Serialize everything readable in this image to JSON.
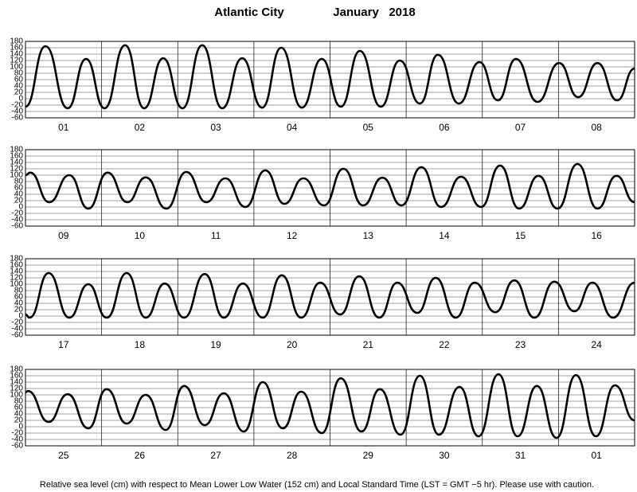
{
  "title": "Atlantic City",
  "period": "January   2018",
  "caption": "Relative sea level (cm) with respect to Mean Lower Low Water (152 cm) and Local Standard Time (LST = GMT −5 hr). Please use with caution.",
  "chart_data": [
    {
      "type": "line",
      "categories": [
        "01",
        "02",
        "03",
        "04",
        "05",
        "06",
        "07",
        "08"
      ],
      "xlim": [
        0,
        192
      ],
      "ylim": [
        -60,
        180
      ],
      "yticks": [
        -60,
        -40,
        -20,
        0,
        20,
        40,
        60,
        80,
        100,
        120,
        140,
        160,
        180
      ],
      "color": "#000000",
      "x": [
        0,
        6.3,
        13.3,
        19.1,
        24.9,
        31.4,
        37.4,
        43.4,
        49.5,
        55.7,
        62.0,
        68.3,
        74.6,
        80.6,
        87.1,
        93.4,
        99.4,
        105.4,
        112,
        118,
        124.3,
        130,
        136.6,
        143.1,
        148.9,
        154.6,
        161.4,
        168.2,
        174.2,
        180.3,
        186.5,
        192
      ],
      "values": [
        -25,
        165,
        -30,
        125,
        -30,
        168,
        -30,
        127,
        -30,
        168,
        -30,
        127,
        -28,
        160,
        -28,
        125,
        -25,
        150,
        -25,
        120,
        -15,
        138,
        -15,
        115,
        -5,
        125,
        -10,
        112,
        5,
        112,
        -5,
        95
      ]
    },
    {
      "type": "line",
      "categories": [
        "09",
        "10",
        "11",
        "12",
        "13",
        "14",
        "15",
        "16"
      ],
      "xlim": [
        0,
        192
      ],
      "ylim": [
        -60,
        180
      ],
      "yticks": [
        -60,
        -40,
        -20,
        0,
        20,
        40,
        60,
        80,
        100,
        120,
        140,
        160,
        180
      ],
      "color": "#000000",
      "x": [
        0,
        1.5,
        7.5,
        13.8,
        19.8,
        25.9,
        32.1,
        37.9,
        44.4,
        50.7,
        57,
        63,
        69.3,
        75.6,
        81.6,
        87.6,
        94.1,
        100.2,
        106.4,
        112.5,
        118.5,
        124.8,
        131,
        137.3,
        143.6,
        149.6,
        155.6,
        161.7,
        167.7,
        174,
        180.3,
        186.3,
        192
      ],
      "values": [
        100,
        108,
        15,
        100,
        -5,
        108,
        15,
        93,
        -5,
        110,
        15,
        90,
        0,
        115,
        10,
        90,
        5,
        120,
        5,
        92,
        5,
        125,
        0,
        95,
        0,
        130,
        -5,
        98,
        -5,
        135,
        -5,
        98,
        15
      ]
    },
    {
      "type": "line",
      "categories": [
        "17",
        "18",
        "19",
        "20",
        "21",
        "22",
        "23",
        "24"
      ],
      "xlim": [
        0,
        192
      ],
      "ylim": [
        -60,
        180
      ],
      "yticks": [
        -60,
        -40,
        -20,
        0,
        20,
        40,
        60,
        80,
        100,
        120,
        140,
        160,
        180
      ],
      "color": "#000000",
      "x": [
        0,
        1.3,
        7.3,
        13.8,
        19.8,
        25.6,
        31.9,
        37.9,
        43.9,
        50,
        56.5,
        62.5,
        68.5,
        74.8,
        80.8,
        86.9,
        92.9,
        99.2,
        105.2,
        111.5,
        117.2,
        123.5,
        129.3,
        135.6,
        141.6,
        148.1,
        154.1,
        160.4,
        166.7,
        173,
        178.7,
        185.2,
        192
      ],
      "values": [
        5,
        -5,
        135,
        -5,
        100,
        -5,
        135,
        -5,
        102,
        -5,
        132,
        -5,
        102,
        -5,
        128,
        -5,
        105,
        5,
        125,
        -5,
        105,
        10,
        120,
        -5,
        105,
        12,
        112,
        -5,
        108,
        15,
        105,
        -5,
        105
      ]
    },
    {
      "type": "line",
      "categories": [
        "25",
        "26",
        "27",
        "28",
        "29",
        "30",
        "31",
        "01"
      ],
      "xlim": [
        0,
        192
      ],
      "ylim": [
        -60,
        180
      ],
      "yticks": [
        -60,
        -40,
        -20,
        0,
        20,
        40,
        60,
        80,
        100,
        120,
        140,
        160,
        180
      ],
      "color": "#000000",
      "x": [
        0,
        0.8,
        7.3,
        13.3,
        19.8,
        25.6,
        31.9,
        37.9,
        44.2,
        50,
        56.5,
        62.5,
        68.8,
        74.8,
        81.1,
        86.9,
        93.4,
        99.4,
        105.9,
        111.7,
        118.2,
        124.3,
        130.3,
        136.8,
        142.8,
        149.1,
        155.1,
        161.2,
        167.4,
        173.5,
        179.8,
        185.8,
        192
      ],
      "values": [
        108,
        112,
        15,
        102,
        -5,
        118,
        10,
        100,
        -10,
        128,
        5,
        105,
        -15,
        140,
        -5,
        110,
        -20,
        152,
        -15,
        118,
        -25,
        160,
        -25,
        125,
        -30,
        165,
        -30,
        128,
        -35,
        162,
        -30,
        130,
        20
      ]
    }
  ]
}
